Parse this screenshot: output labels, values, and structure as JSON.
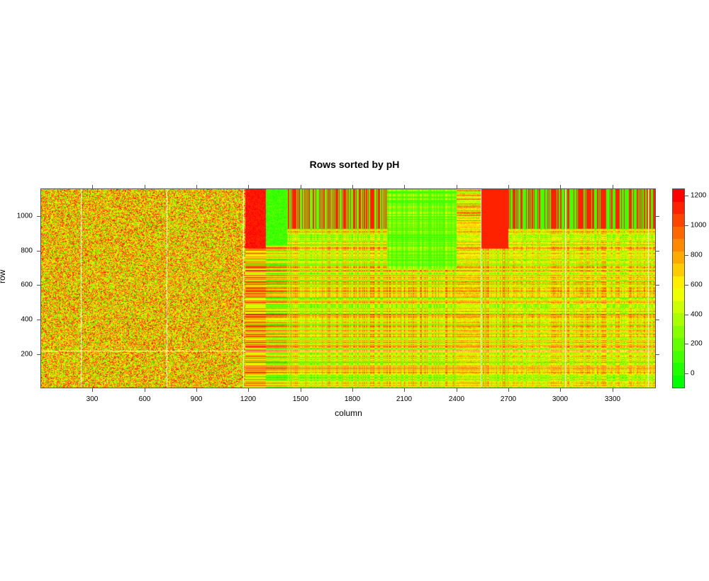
{
  "chart_data": {
    "type": "heatmap",
    "title": "Rows sorted by pH",
    "xlabel": "column",
    "ylabel": "row",
    "xlim": [
      1,
      3550
    ],
    "ylim": [
      1,
      1160
    ],
    "x_ticks": [
      300,
      600,
      900,
      1200,
      1500,
      1800,
      2100,
      2400,
      2700,
      3000,
      3300
    ],
    "y_ticks": [
      200,
      400,
      600,
      800,
      1000
    ],
    "grid": false,
    "colorkey": {
      "position": "right",
      "range": [
        -100,
        1250
      ],
      "ticks": [
        0,
        200,
        400,
        600,
        800,
        1000,
        1200
      ],
      "palette": [
        "#00ff00",
        "#22ff00",
        "#44ff00",
        "#66ff00",
        "#88ff00",
        "#aaff00",
        "#ccff00",
        "#eeff00",
        "#ffee00",
        "#ffcc00",
        "#ffaa00",
        "#ff8800",
        "#ff6600",
        "#ff4400",
        "#ff2200",
        "#ff0000"
      ]
    },
    "missing_columns_white_lines": [
      230,
      725,
      1170,
      2540,
      3030,
      3510
    ],
    "missing_rows_white_lines": [
      215
    ],
    "column_bands": [
      {
        "from": 1,
        "to": 1180,
        "pattern": "noisy mixed yellow/red/green, speckled"
      },
      {
        "from": 1180,
        "to": 1300,
        "pattern": "red at top rows, mixed below"
      },
      {
        "from": 1300,
        "to": 1420,
        "pattern": "green at top rows (~800-1160), red/yellow striped below"
      },
      {
        "from": 1420,
        "to": 2000,
        "pattern": "striped horizontal red/yellow/green, red blocks at top"
      },
      {
        "from": 2000,
        "to": 2400,
        "pattern": "green top, striped red lower rows"
      },
      {
        "from": 2400,
        "to": 2540,
        "pattern": "mixed yellow/green"
      },
      {
        "from": 2540,
        "to": 2700,
        "pattern": "strong red top, orange/red striped"
      },
      {
        "from": 2700,
        "to": 3550,
        "pattern": "mixed striped with green/red vertical bands"
      }
    ]
  },
  "labels": {
    "title": "Rows sorted by pH",
    "xlabel": "column",
    "ylabel": "row",
    "xticks": [
      "300",
      "600",
      "900",
      "1200",
      "1500",
      "1800",
      "2100",
      "2400",
      "2700",
      "3000",
      "3300"
    ],
    "yticks": [
      "200",
      "400",
      "600",
      "800",
      "1000"
    ],
    "ckticks": [
      "0",
      "200",
      "400",
      "600",
      "800",
      "1000",
      "1200"
    ]
  }
}
